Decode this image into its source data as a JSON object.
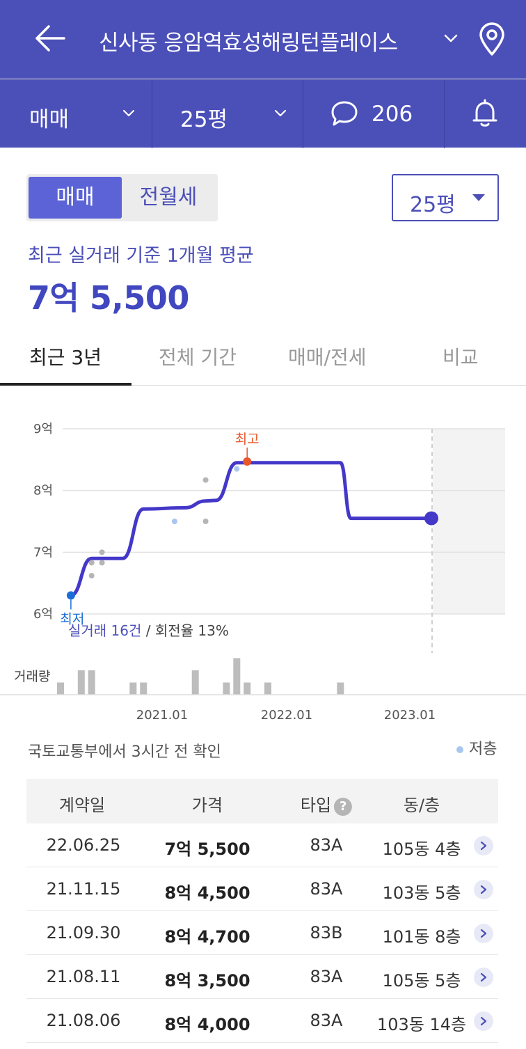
{
  "header": {
    "title": "신사동 응암역효성해링턴플레이스",
    "trade_type": "매매",
    "size": "25평",
    "comment_count": "206"
  },
  "toggle": {
    "on": "매매",
    "off": "전월세"
  },
  "size_select": "25평",
  "summary": {
    "caption": "최근 실거래 기준 1개월 평균",
    "price": "7억 5,500"
  },
  "tabs": [
    "최근 3년",
    "전체 기간",
    "매매/전세",
    "비교"
  ],
  "chart_data": {
    "type": "line",
    "y_ticks": [
      "9억",
      "8억",
      "7억",
      "6억"
    ],
    "y_range": [
      6.0,
      9.0
    ],
    "x_ticks": [
      "2021.01",
      "2022.01",
      "2023.01"
    ],
    "high_label": "최고",
    "low_label": "최저",
    "trade_summary": {
      "count_text": "실거래 16건",
      "rest": " / 회전율 13%"
    },
    "volume_label": "거래량",
    "series": [
      {
        "values": [
          {
            "x": "2020.04",
            "y": 6.3
          },
          {
            "x": "2020.06",
            "y": 6.9
          },
          {
            "x": "2020.09",
            "y": 6.9
          },
          {
            "x": "2020.11",
            "y": 7.7
          },
          {
            "x": "2021.03",
            "y": 7.72
          },
          {
            "x": "2021.05",
            "y": 7.83
          },
          {
            "x": "2021.06",
            "y": 7.84
          },
          {
            "x": "2021.08",
            "y": 8.45
          },
          {
            "x": "2021.11",
            "y": 8.45
          },
          {
            "x": "2022.06",
            "y": 8.45
          },
          {
            "x": "2022.07",
            "y": 7.55
          },
          {
            "x": "2023.03",
            "y": 7.55
          }
        ]
      }
    ],
    "points": [
      {
        "x": "2020.04",
        "y": 6.3,
        "kind": "low"
      },
      {
        "x": "2020.06",
        "y": 6.62,
        "kind": "normal"
      },
      {
        "x": "2020.06",
        "y": 6.83,
        "kind": "normal"
      },
      {
        "x": "2020.07",
        "y": 6.83,
        "kind": "normal"
      },
      {
        "x": "2020.07",
        "y": 7.0,
        "kind": "normal"
      },
      {
        "x": "2021.02",
        "y": 7.5,
        "kind": "low-floor"
      },
      {
        "x": "2021.05",
        "y": 7.5,
        "kind": "normal"
      },
      {
        "x": "2021.05",
        "y": 8.17,
        "kind": "normal"
      },
      {
        "x": "2021.08",
        "y": 8.35,
        "kind": "low-floor"
      },
      {
        "x": "2021.09",
        "y": 8.47,
        "kind": "high"
      }
    ],
    "volumes": [
      {
        "x": "2020.03",
        "v": 1
      },
      {
        "x": "2020.05",
        "v": 2
      },
      {
        "x": "2020.06",
        "v": 2
      },
      {
        "x": "2020.10",
        "v": 1
      },
      {
        "x": "2020.11",
        "v": 1
      },
      {
        "x": "2021.04",
        "v": 2
      },
      {
        "x": "2021.07",
        "v": 1
      },
      {
        "x": "2021.08",
        "v": 3
      },
      {
        "x": "2021.09",
        "v": 1
      },
      {
        "x": "2021.11",
        "v": 1
      },
      {
        "x": "2022.06",
        "v": 1
      }
    ],
    "current_value": 7.55
  },
  "source": "국토교통부에서 3시간 전 확인",
  "legend": "저층",
  "colors": {
    "brand": "#4b4fb8",
    "line": "#4438c9",
    "high": "#e8562a",
    "low": "#1a6fd6",
    "floor_dot": "#a9c6ee"
  },
  "table": {
    "headers": [
      "계약일",
      "가격",
      "타입",
      "동/층"
    ],
    "help_icon": "?",
    "rows": [
      {
        "date": "22.06.25",
        "price": "7억 5,500",
        "type": "83A",
        "unit": "105동 4층"
      },
      {
        "date": "21.11.15",
        "price": "8억 4,500",
        "type": "83A",
        "unit": "103동 5층"
      },
      {
        "date": "21.09.30",
        "price": "8억 4,700",
        "type": "83B",
        "unit": "101동 8층"
      },
      {
        "date": "21.08.11",
        "price": "8억 3,500",
        "type": "83A",
        "unit": "105동 5층"
      },
      {
        "date": "21.08.06",
        "price": "8억 4,000",
        "type": "83A",
        "unit": "103동 14층"
      }
    ]
  }
}
